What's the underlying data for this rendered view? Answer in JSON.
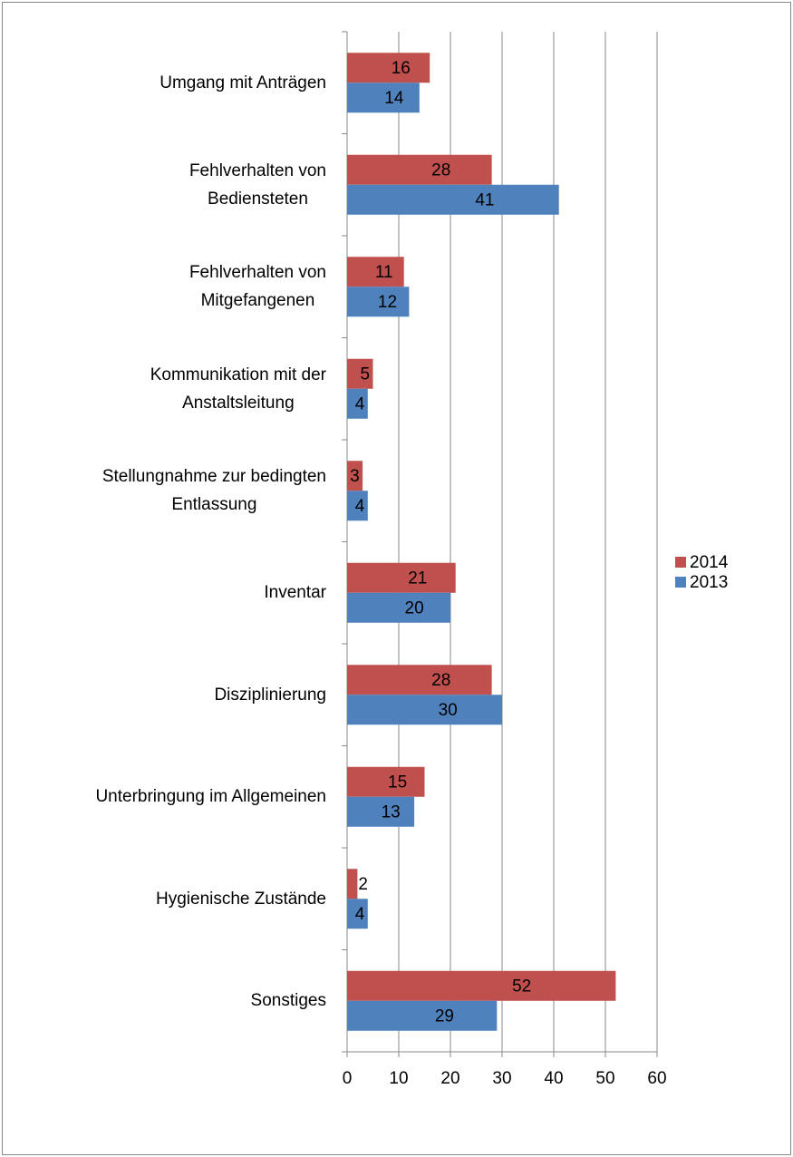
{
  "chart_data": {
    "type": "bar",
    "orientation": "horizontal",
    "categories": [
      "Umgang mit Anträgen",
      "Fehlverhalten von\nBediensteten",
      "Fehlverhalten von\nMitgefangenen",
      "Kommunikation mit der\nAnstaltsleitung",
      "Stellungnahme zur bedingten\nEntlassung",
      "Inventar",
      "Disziplinierung",
      "Unterbringung im Allgemeinen",
      "Hygienische Zustände",
      "Sonstiges"
    ],
    "series": [
      {
        "name": "2014",
        "color": "#c0504d",
        "values": [
          16,
          28,
          11,
          5,
          3,
          21,
          28,
          15,
          2,
          52
        ]
      },
      {
        "name": "2013",
        "color": "#4f81bd",
        "values": [
          14,
          41,
          12,
          4,
          4,
          20,
          30,
          13,
          4,
          29
        ]
      }
    ],
    "xlim": [
      0,
      60
    ],
    "xticks": [
      0,
      10,
      20,
      30,
      40,
      50,
      60
    ],
    "grid": true,
    "legend": "right"
  }
}
